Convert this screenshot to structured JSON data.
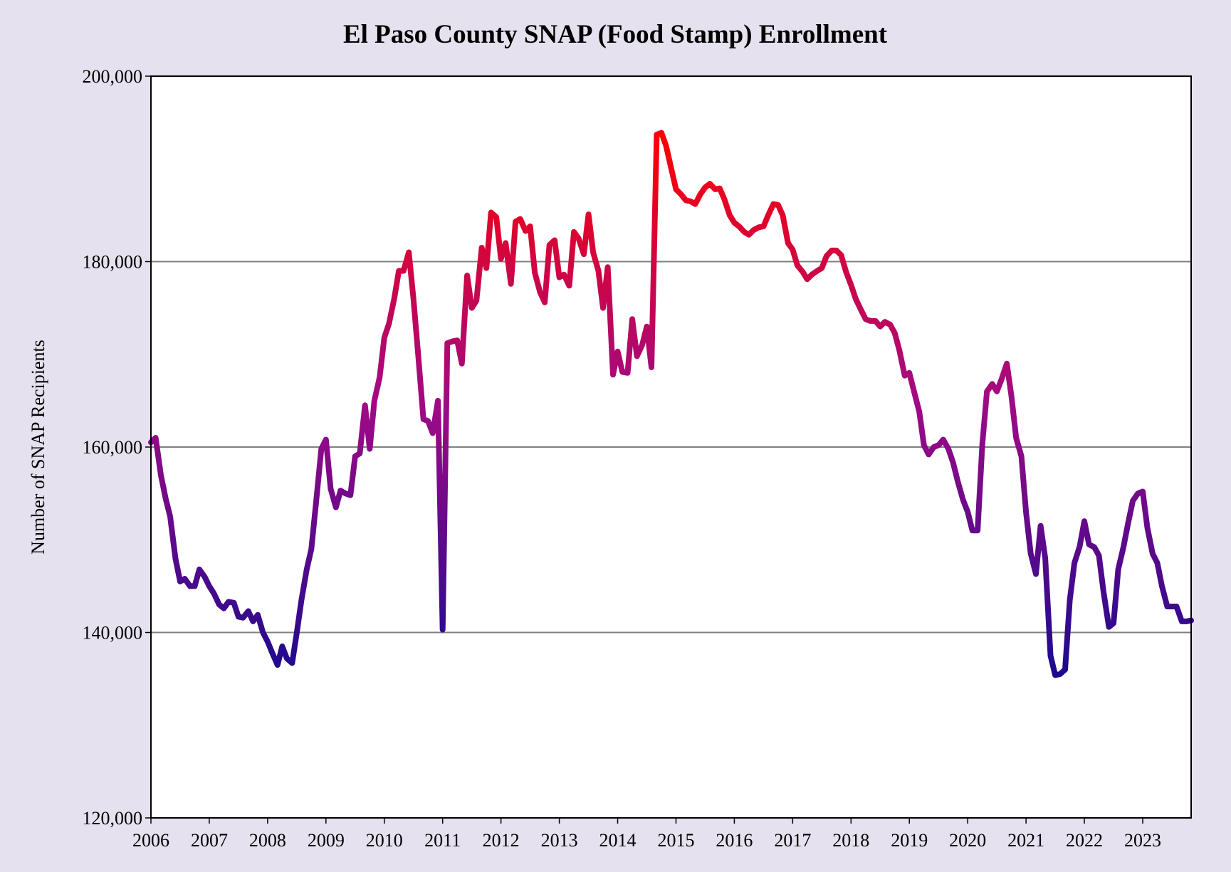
{
  "chart_data": {
    "type": "line",
    "title": "El Paso County SNAP (Food Stamp) Enrollment",
    "y_label": "Number of SNAP Recipients",
    "gradient_colors": [
      "#ff0000",
      "#a00a86",
      "#1c0a8e"
    ],
    "grid": true,
    "xlim": [
      2006,
      2023.83
    ],
    "xticks": [
      2006,
      2007,
      2008,
      2009,
      2010,
      2011,
      2012,
      2013,
      2014,
      2015,
      2016,
      2017,
      2018,
      2019,
      2020,
      2021,
      2022,
      2023
    ],
    "ylim": [
      120000,
      200000
    ],
    "yticks": [
      {
        "value": 120000,
        "label": "120,000"
      },
      {
        "value": 140000,
        "label": "140,000"
      },
      {
        "value": 160000,
        "label": "160,000"
      },
      {
        "value": 180000,
        "label": "180,000"
      },
      {
        "value": 200000,
        "label": "200,000"
      }
    ],
    "x": [
      2006.0,
      2006.08,
      2006.17,
      2006.25,
      2006.33,
      2006.42,
      2006.5,
      2006.58,
      2006.67,
      2006.75,
      2006.83,
      2006.92,
      2007.0,
      2007.08,
      2007.17,
      2007.25,
      2007.33,
      2007.42,
      2007.5,
      2007.58,
      2007.67,
      2007.75,
      2007.83,
      2007.92,
      2008.0,
      2008.08,
      2008.17,
      2008.25,
      2008.33,
      2008.42,
      2008.5,
      2008.58,
      2008.67,
      2008.75,
      2008.83,
      2008.92,
      2009.0,
      2009.08,
      2009.17,
      2009.25,
      2009.33,
      2009.42,
      2009.5,
      2009.58,
      2009.67,
      2009.75,
      2009.83,
      2009.92,
      2010.0,
      2010.08,
      2010.17,
      2010.25,
      2010.33,
      2010.42,
      2010.5,
      2010.58,
      2010.67,
      2010.75,
      2010.83,
      2010.92,
      2011.0,
      2011.08,
      2011.17,
      2011.25,
      2011.33,
      2011.42,
      2011.5,
      2011.58,
      2011.67,
      2011.75,
      2011.83,
      2011.92,
      2012.0,
      2012.08,
      2012.17,
      2012.25,
      2012.33,
      2012.42,
      2012.5,
      2012.58,
      2012.67,
      2012.75,
      2012.83,
      2012.92,
      2013.0,
      2013.08,
      2013.17,
      2013.25,
      2013.33,
      2013.42,
      2013.5,
      2013.58,
      2013.67,
      2013.75,
      2013.83,
      2013.92,
      2014.0,
      2014.08,
      2014.17,
      2014.25,
      2014.33,
      2014.42,
      2014.5,
      2014.58,
      2014.67,
      2014.75,
      2014.83,
      2014.92,
      2015.0,
      2015.08,
      2015.17,
      2015.25,
      2015.33,
      2015.42,
      2015.5,
      2015.58,
      2015.67,
      2015.75,
      2015.83,
      2015.92,
      2016.0,
      2016.08,
      2016.17,
      2016.25,
      2016.33,
      2016.42,
      2016.5,
      2016.58,
      2016.67,
      2016.75,
      2016.83,
      2016.92,
      2017.0,
      2017.08,
      2017.17,
      2017.25,
      2017.33,
      2017.42,
      2017.5,
      2017.58,
      2017.67,
      2017.75,
      2017.83,
      2017.92,
      2018.0,
      2018.08,
      2018.17,
      2018.25,
      2018.33,
      2018.42,
      2018.5,
      2018.58,
      2018.67,
      2018.75,
      2018.83,
      2018.92,
      2019.0,
      2019.08,
      2019.17,
      2019.25,
      2019.33,
      2019.42,
      2019.5,
      2019.58,
      2019.67,
      2019.75,
      2019.83,
      2019.92,
      2020.0,
      2020.08,
      2020.17,
      2020.25,
      2020.33,
      2020.42,
      2020.5,
      2020.58,
      2020.67,
      2020.75,
      2020.83,
      2020.92,
      2021.0,
      2021.08,
      2021.17,
      2021.25,
      2021.33,
      2021.42,
      2021.5,
      2021.58,
      2021.67,
      2021.75,
      2021.83,
      2021.92,
      2022.0,
      2022.08,
      2022.17,
      2022.25,
      2022.33,
      2022.42,
      2022.5,
      2022.58,
      2022.67,
      2022.75,
      2022.83,
      2022.92,
      2023.0,
      2023.08,
      2023.17,
      2023.25,
      2023.33,
      2023.42,
      2023.5,
      2023.58,
      2023.67,
      2023.75,
      2023.83
    ],
    "values": [
      160500,
      161000,
      157000,
      154500,
      152500,
      148000,
      145500,
      145800,
      145000,
      145000,
      146800,
      146000,
      145000,
      144200,
      143000,
      142600,
      143300,
      143200,
      141700,
      141600,
      142300,
      141200,
      141900,
      140000,
      139000,
      137800,
      136500,
      138500,
      137200,
      136700,
      140000,
      143500,
      146800,
      149000,
      154000,
      159800,
      160800,
      155500,
      153500,
      155300,
      155000,
      154800,
      159000,
      159300,
      164500,
      159800,
      165000,
      167500,
      171800,
      173300,
      176000,
      179000,
      179000,
      181000,
      176000,
      170000,
      163000,
      162800,
      161500,
      165000,
      140300,
      171200,
      171400,
      171500,
      169000,
      178500,
      175000,
      175800,
      181500,
      179300,
      185300,
      184800,
      180300,
      182000,
      177600,
      184300,
      184600,
      183300,
      183800,
      178800,
      176700,
      175600,
      181800,
      182300,
      178300,
      178600,
      177400,
      183200,
      182500,
      180800,
      185100,
      181000,
      179000,
      175000,
      179400,
      167800,
      170300,
      168100,
      168000,
      173800,
      169800,
      171000,
      173000,
      168600,
      193700,
      193900,
      192500,
      190000,
      187800,
      187300,
      186600,
      186500,
      186200,
      187300,
      188000,
      188400,
      187800,
      187900,
      186700,
      185000,
      184200,
      183800,
      183200,
      182900,
      183400,
      183700,
      183800,
      185000,
      186200,
      186100,
      185000,
      182000,
      181300,
      179600,
      178900,
      178100,
      178600,
      179000,
      179300,
      180600,
      181200,
      181200,
      180700,
      178800,
      177500,
      176000,
      174800,
      173800,
      173600,
      173600,
      173000,
      173500,
      173200,
      172300,
      170400,
      167700,
      168000,
      166000,
      163800,
      160200,
      159200,
      160000,
      160200,
      160800,
      159800,
      158300,
      156300,
      154300,
      153000,
      151000,
      151000,
      160300,
      166000,
      166800,
      166000,
      167300,
      169000,
      165500,
      161000,
      159000,
      153000,
      148500,
      146300,
      151500,
      148000,
      137500,
      135400,
      135500,
      136000,
      143500,
      147500,
      149300,
      152000,
      149500,
      149200,
      148300,
      144300,
      140600,
      141000,
      146800,
      149200,
      151800,
      154200,
      155000,
      155200,
      151300,
      148500,
      147500,
      145000,
      142800,
      142800,
      142800,
      141200,
      141200,
      141300
    ]
  }
}
